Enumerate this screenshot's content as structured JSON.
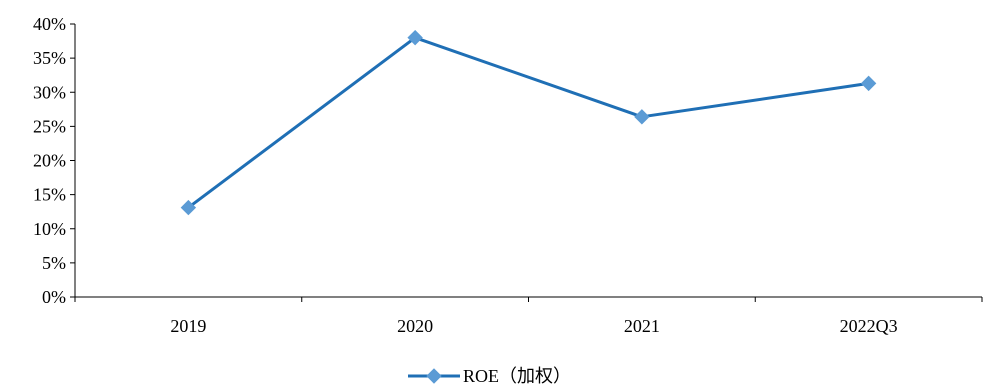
{
  "chart_data": {
    "type": "line",
    "categories": [
      "2019",
      "2020",
      "2021",
      "2022Q3"
    ],
    "series": [
      {
        "name": "ROE（加权）",
        "values": [
          13.1,
          38.0,
          26.4,
          31.3
        ],
        "color": "#1f6fb5",
        "marker_color": "#5b9bd5"
      }
    ],
    "ylim": [
      0,
      40
    ],
    "yticks": [
      "0%",
      "5%",
      "10%",
      "15%",
      "20%",
      "25%",
      "30%",
      "35%",
      "40%"
    ],
    "ytick_values": [
      0,
      5,
      10,
      15,
      20,
      25,
      30,
      35,
      40
    ],
    "grid": false,
    "legend_position": "bottom",
    "title": "",
    "xlabel": "",
    "ylabel": ""
  }
}
